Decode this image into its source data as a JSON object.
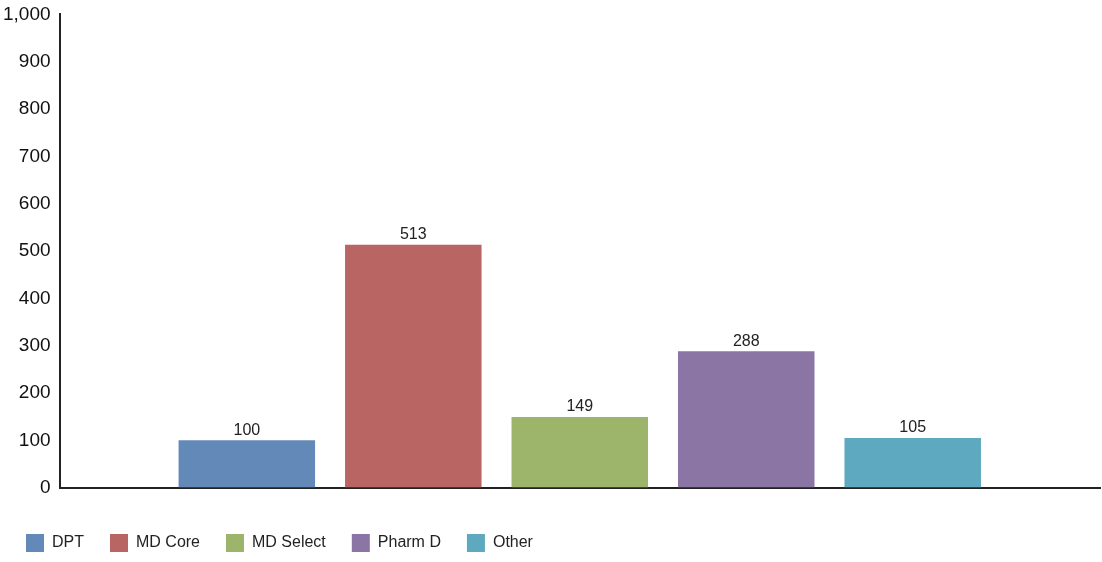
{
  "chart_data": {
    "type": "bar",
    "categories": [
      null
    ],
    "series": [
      {
        "name": "DPT",
        "color": "#6389b9",
        "values": [
          100
        ]
      },
      {
        "name": "MD Core",
        "color": "#b96563",
        "values": [
          513
        ]
      },
      {
        "name": "MD Select",
        "color": "#9db46b",
        "values": [
          149
        ]
      },
      {
        "name": "Pharm D",
        "color": "#8a75a5",
        "values": [
          288
        ]
      },
      {
        "name": "Other",
        "color": "#5ea9c0",
        "values": [
          105
        ]
      }
    ],
    "ylim": [
      0,
      1000
    ],
    "yticks": [
      0,
      100,
      200,
      300,
      400,
      500,
      600,
      700,
      800,
      900,
      {
        "value": 1000,
        "label": "1,000"
      }
    ],
    "grid": false,
    "legend": "bottom left",
    "data_labels": true
  }
}
